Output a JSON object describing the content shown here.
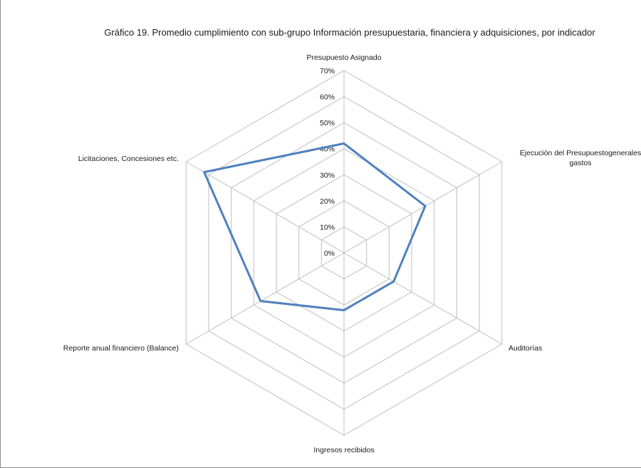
{
  "chart_data": {
    "type": "radar",
    "title": "Gráfico 19. Promedio  cumplimiento  con sub-grupo Información presupuestaria, financiera y adquisiciones, por indicador",
    "categories": [
      "Presupuesto Asignado",
      "Ejecución del Presupuestogenerales gastos",
      "Auditorías",
      "Ingresos recibidos",
      "Reporte anual financiero (Balance)",
      "Licitaciones, Concesiones etc."
    ],
    "series": [
      {
        "values": [
          42,
          36,
          22,
          22,
          37,
          62
        ],
        "color": "#4f81bd"
      }
    ],
    "rlim": [
      0,
      70
    ],
    "ticks": [
      "0%",
      "10%",
      "20%",
      "30%",
      "40%",
      "50%",
      "60%",
      "70%"
    ],
    "grid": true,
    "legend": "none"
  }
}
